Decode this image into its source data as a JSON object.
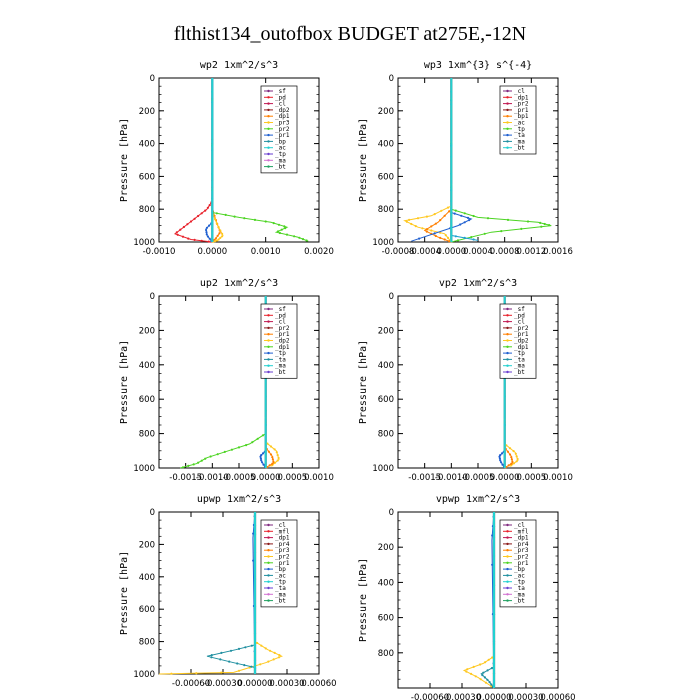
{
  "figure_title": "flthist134_outofbox  BUDGET at275E,-12N",
  "chart_data": [
    {
      "type": "line",
      "title": "wp2   1xm^2/s^3",
      "ylabel": "Pressure  [hPa]",
      "xlim": [
        -0.001,
        0.002
      ],
      "xticks": [
        -0.001,
        0,
        0.001,
        0.002
      ],
      "xtick_labels": [
        "-0.0010",
        "0.0000",
        "0.0010",
        "0.0020"
      ],
      "ylim": [
        1000,
        0
      ],
      "yticks": [
        0,
        200,
        400,
        600,
        800,
        1000
      ],
      "legend_position": "top-right",
      "legend": [
        "_sf",
        "_pd",
        "_cl",
        "_dp2",
        "_dp1",
        "_pr3",
        "_pr2",
        "_pr1",
        "_bp",
        "_ac",
        "_tp",
        "_ma",
        "_bt"
      ],
      "series": [
        {
          "name": "_dp1",
          "color": "#e8202a",
          "points": [
            [
              0,
              0
            ],
            [
              0,
              750
            ],
            [
              -0.0001,
              800
            ],
            [
              -0.0003,
              850
            ],
            [
              -0.0005,
              900
            ],
            [
              -0.0007,
              950
            ],
            [
              -0.0004,
              985
            ],
            [
              0,
              1000
            ]
          ]
        },
        {
          "name": "_pr3",
          "color": "#ff7f00",
          "points": [
            [
              0,
              0
            ],
            [
              0,
              800
            ],
            [
              8e-05,
              880
            ],
            [
              0.00015,
              940
            ],
            [
              5e-05,
              985
            ],
            [
              0,
              1000
            ]
          ]
        },
        {
          "name": "_pr2",
          "color": "#ffc820",
          "points": [
            [
              0,
              0
            ],
            [
              0,
              820
            ],
            [
              0.0001,
              900
            ],
            [
              0.0002,
              960
            ],
            [
              0.0001,
              990
            ],
            [
              0,
              1000
            ]
          ]
        },
        {
          "name": "_pr1",
          "color": "#7f2a7f",
          "points": [
            [
              0,
              0
            ],
            [
              0,
              1000
            ]
          ]
        },
        {
          "name": "_bp",
          "color": "#4cd422",
          "points": [
            [
              0,
              0
            ],
            [
              0,
              820
            ],
            [
              0.0005,
              850
            ],
            [
              0.0011,
              880
            ],
            [
              0.0014,
              910
            ],
            [
              0.0012,
              940
            ],
            [
              0.0016,
              970
            ],
            [
              0.0018,
              995
            ]
          ]
        },
        {
          "name": "_ac",
          "color": "#1f5fd0",
          "points": [
            [
              0,
              0
            ],
            [
              0,
              880
            ],
            [
              -0.00012,
              920
            ],
            [
              -0.0001,
              960
            ],
            [
              0,
              1000
            ]
          ]
        },
        {
          "name": "_bt",
          "color": "#22d0d0",
          "points": [
            [
              0,
              0
            ],
            [
              0,
              1000
            ]
          ]
        }
      ]
    },
    {
      "type": "line",
      "title": "wp3   1xm^{3} s^{-4}",
      "ylabel": "Pressure  [hPa]",
      "xlim": [
        -0.0008,
        0.0016
      ],
      "xticks": [
        -0.0008,
        -0.0004,
        0,
        0.0004,
        0.0008,
        0.0012,
        0.0016
      ],
      "xtick_labels": [
        "-0.0008",
        "-0.0004",
        "0.0000",
        "0.0004",
        "0.0008",
        "0.0012",
        "0.0016"
      ],
      "ylim": [
        1000,
        0
      ],
      "yticks": [
        0,
        200,
        400,
        600,
        800,
        1000
      ],
      "legend_position": "top-right",
      "legend": [
        "_cl",
        "_dp1",
        "_pr2",
        "_pr1",
        "_bp1",
        "_ac",
        "_tp",
        "_ta",
        "_ma",
        "_bt"
      ],
      "series": [
        {
          "name": "_cl",
          "color": "#e8202a",
          "points": [
            [
              0,
              0
            ],
            [
              0,
              1000
            ]
          ]
        },
        {
          "name": "_pr2",
          "color": "#ffc820",
          "points": [
            [
              0,
              0
            ],
            [
              0,
              780
            ],
            [
              -0.0003,
              840
            ],
            [
              -0.0007,
              870
            ],
            [
              -0.0005,
              910
            ],
            [
              -0.0001,
              950
            ],
            [
              0,
              1000
            ]
          ]
        },
        {
          "name": "_pr1",
          "color": "#ff7f00",
          "points": [
            [
              0,
              0
            ],
            [
              0,
              800
            ],
            [
              -0.0002,
              880
            ],
            [
              -0.0004,
              930
            ],
            [
              -0.0002,
              970
            ],
            [
              0,
              1000
            ]
          ]
        },
        {
          "name": "_ac",
          "color": "#4cd422",
          "points": [
            [
              0,
              0
            ],
            [
              0,
              800
            ],
            [
              0.0004,
              850
            ],
            [
              0.0013,
              880
            ],
            [
              0.0015,
              900
            ],
            [
              0.0006,
              940
            ],
            [
              0,
              1000
            ]
          ]
        },
        {
          "name": "_tp",
          "color": "#1f5fd0",
          "points": [
            [
              0,
              0
            ],
            [
              0,
              820
            ],
            [
              0.0003,
              860
            ],
            [
              0.0001,
              900
            ],
            [
              -0.0006,
              995
            ]
          ]
        },
        {
          "name": "_ta",
          "color": "#1fa0d0",
          "points": [
            [
              0,
              0
            ],
            [
              0,
              960
            ],
            [
              0.0004,
              990
            ]
          ]
        },
        {
          "name": "_bt",
          "color": "#22d0d0",
          "points": [
            [
              0,
              0
            ],
            [
              0,
              1000
            ]
          ]
        }
      ]
    },
    {
      "type": "line",
      "title": "up2   1xm^2/s^3",
      "ylabel": "Pressure  [hPa]",
      "xlim": [
        -0.002,
        0.001
      ],
      "xticks": [
        -0.0015,
        -0.001,
        -0.0005,
        0,
        0.0005,
        0.001
      ],
      "xtick_labels": [
        "-0.0015",
        "-0.0010",
        "-0.0005",
        "0.0000",
        "0.0005",
        "0.0010"
      ],
      "ylim": [
        1000,
        0
      ],
      "yticks": [
        0,
        200,
        400,
        600,
        800,
        1000
      ],
      "legend_position": "top-right",
      "legend": [
        "_sf",
        "_pd",
        "_cl",
        "_pr2",
        "_pr1",
        "_dp2",
        "_dp1",
        "_tp",
        "_ta",
        "_ma",
        "_bt"
      ],
      "series": [
        {
          "name": "_pd",
          "color": "#e8202a",
          "points": [
            [
              0,
              0
            ],
            [
              0,
              1000
            ]
          ]
        },
        {
          "name": "_pr1",
          "color": "#ffc820",
          "points": [
            [
              0,
              0
            ],
            [
              0,
              850
            ],
            [
              0.0002,
              900
            ],
            [
              0.00025,
              950
            ],
            [
              0.0001,
              990
            ]
          ]
        },
        {
          "name": "_pr2",
          "color": "#ff7f00",
          "points": [
            [
              0,
              0
            ],
            [
              0,
              880
            ],
            [
              0.00012,
              930
            ],
            [
              0.00015,
              970
            ],
            [
              0,
              1000
            ]
          ]
        },
        {
          "name": "_dp1",
          "color": "#4cd422",
          "points": [
            [
              0,
              0
            ],
            [
              0,
              800
            ],
            [
              -0.0003,
              860
            ],
            [
              -0.0007,
              900
            ],
            [
              -0.0011,
              940
            ],
            [
              -0.0013,
              975
            ],
            [
              -0.0016,
              1000
            ]
          ]
        },
        {
          "name": "_tp",
          "color": "#1f5fd0",
          "points": [
            [
              0,
              0
            ],
            [
              0,
              900
            ],
            [
              -0.0001,
              930
            ],
            [
              -8e-05,
              960
            ],
            [
              0,
              1000
            ]
          ]
        },
        {
          "name": "_bt",
          "color": "#22d0d0",
          "points": [
            [
              0,
              0
            ],
            [
              0,
              1000
            ]
          ]
        }
      ]
    },
    {
      "type": "line",
      "title": "vp2   1xm^2/s^3",
      "ylabel": "Pressure  [hPa]",
      "xlim": [
        -0.002,
        0.001
      ],
      "xticks": [
        -0.0015,
        -0.001,
        -0.0005,
        0,
        0.0005,
        0.001
      ],
      "xtick_labels": [
        "-0.0015",
        "-0.0010",
        "-0.0005",
        "0.0000",
        "0.0005",
        "0.0010"
      ],
      "ylim": [
        1000,
        0
      ],
      "yticks": [
        0,
        200,
        400,
        600,
        800,
        1000
      ],
      "legend_position": "top-right",
      "legend": [
        "_sf",
        "_pd",
        "_cl",
        "_pr2",
        "_pr1",
        "_dp2",
        "_dp1",
        "_tp",
        "_ta",
        "_ma",
        "_bt"
      ],
      "series": [
        {
          "name": "_pd",
          "color": "#e8202a",
          "points": [
            [
              0,
              0
            ],
            [
              0,
              1000
            ]
          ]
        },
        {
          "name": "_pr1",
          "color": "#ffc820",
          "points": [
            [
              0,
              0
            ],
            [
              0,
              860
            ],
            [
              0.0002,
              910
            ],
            [
              0.00025,
              955
            ],
            [
              0.0001,
              990
            ]
          ]
        },
        {
          "name": "_pr2",
          "color": "#ff7f00",
          "points": [
            [
              0,
              0
            ],
            [
              0,
              880
            ],
            [
              0.00012,
              930
            ],
            [
              0.00015,
              970
            ],
            [
              0,
              1000
            ]
          ]
        },
        {
          "name": "_tp",
          "color": "#1f5fd0",
          "points": [
            [
              0,
              0
            ],
            [
              0,
              900
            ],
            [
              -0.0001,
              930
            ],
            [
              -8e-05,
              960
            ],
            [
              0,
              1000
            ]
          ]
        },
        {
          "name": "_bt",
          "color": "#22d0d0",
          "points": [
            [
              0,
              0
            ],
            [
              0,
              1000
            ]
          ]
        }
      ]
    },
    {
      "type": "line",
      "title": "upwp   1xm^2/s^3",
      "ylabel": "Pressure  [hPa]",
      "xlim": [
        -0.0009,
        0.0006
      ],
      "xticks": [
        -0.0006,
        -0.0003,
        0,
        0.0003,
        0.0006
      ],
      "xtick_labels": [
        "-0.00060",
        "-0.00030",
        "0.00000",
        "0.00030",
        "0.00060"
      ],
      "ylim": [
        1000,
        0
      ],
      "yticks": [
        0,
        200,
        400,
        600,
        800,
        1000
      ],
      "legend_position": "top-right",
      "legend": [
        "_cl",
        "_mfl",
        "_dp1",
        "_pr4",
        "_pr3",
        "_pr2",
        "_pr1",
        "_bp",
        "_ac",
        "_tp",
        "_ta",
        "_ma",
        "_bt"
      ],
      "series": [
        {
          "name": "_dp1",
          "color": "#8b1a1a",
          "points": [
            [
              0,
              0
            ],
            [
              0,
              1000
            ]
          ]
        },
        {
          "name": "_pr2",
          "color": "#ffc820",
          "points": [
            [
              0,
              0
            ],
            [
              0,
              800
            ],
            [
              0.00012,
              850
            ],
            [
              0.00025,
              890
            ],
            [
              0.0001,
              930
            ],
            [
              -0.0002,
              990
            ],
            [
              -0.0009,
              1000
            ]
          ]
        },
        {
          "name": "_ta",
          "color": "#1f8fa0",
          "points": [
            [
              0,
              0
            ],
            [
              0,
              820
            ],
            [
              -0.00018,
              850
            ],
            [
              -0.00045,
              890
            ],
            [
              -0.0002,
              930
            ],
            [
              0,
              960
            ],
            [
              0,
              1000
            ]
          ]
        },
        {
          "name": "_ma",
          "color": "#1f5fd0",
          "points": [
            [
              0,
              0
            ],
            [
              -2e-05,
              160
            ],
            [
              0,
              1000
            ]
          ]
        },
        {
          "name": "_bt",
          "color": "#22d0d0",
          "points": [
            [
              0,
              0
            ],
            [
              0,
              1000
            ]
          ]
        }
      ]
    },
    {
      "type": "line",
      "title": "vpwp   1xm^2/s^3",
      "ylabel": "Pressure  [hPa]",
      "xlim": [
        -0.0009,
        0.0006
      ],
      "xticks": [
        -0.0006,
        -0.0003,
        0,
        0.0003,
        0.0006
      ],
      "xtick_labels": [
        "-0.00060",
        "-0.00030",
        "0.00000",
        "0.00030",
        "0.00060"
      ],
      "ylim": [
        1000,
        0
      ],
      "yticks": [
        0,
        200,
        400,
        600,
        800
      ],
      "legend_position": "top-right",
      "legend": [
        "_cl",
        "_mfl",
        "_dp1",
        "_pr4",
        "_pr3",
        "_pr2",
        "_pr1",
        "_bp",
        "_ac",
        "_tp",
        "_ta",
        "_ma",
        "_bt"
      ],
      "series": [
        {
          "name": "_dp1",
          "color": "#8b1a1a",
          "points": [
            [
              0,
              0
            ],
            [
              0,
              1000
            ]
          ]
        },
        {
          "name": "_pr2",
          "color": "#ffc820",
          "points": [
            [
              0,
              0
            ],
            [
              0,
              820
            ],
            [
              -0.0001,
              860
            ],
            [
              -0.00028,
              900
            ],
            [
              -0.00015,
              940
            ],
            [
              0,
              1000
            ]
          ]
        },
        {
          "name": "_ta",
          "color": "#1f8fa0",
          "points": [
            [
              0,
              0
            ],
            [
              0,
              880
            ],
            [
              -0.00012,
              920
            ],
            [
              -5e-05,
              960
            ],
            [
              0,
              1000
            ]
          ]
        },
        {
          "name": "_ma",
          "color": "#1f5fd0",
          "points": [
            [
              0,
              0
            ],
            [
              -2e-05,
              160
            ],
            [
              0,
              1000
            ]
          ]
        },
        {
          "name": "_bt",
          "color": "#22d0d0",
          "points": [
            [
              0,
              0
            ],
            [
              0,
              1000
            ]
          ]
        }
      ]
    }
  ]
}
